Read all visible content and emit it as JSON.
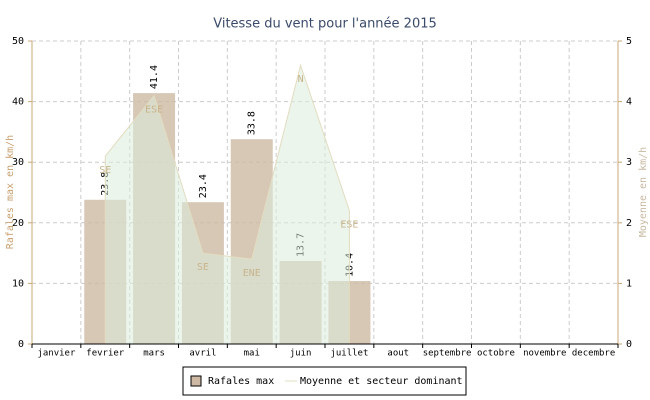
{
  "chart_data": {
    "type": "bar",
    "title": "Vitesse du vent pour l'année 2015",
    "y_label": "Rafales max en km/h",
    "y2_label": "Moyenne en km/h",
    "categories": [
      "janvier",
      "fevrier",
      "mars",
      "avril",
      "mai",
      "juin",
      "juillet",
      "aout",
      "septembre",
      "octobre",
      "novembre",
      "decembre"
    ],
    "series": [
      {
        "name": "Rafales max",
        "type": "bar",
        "color": "#cdb9a3",
        "values": [
          null,
          23.8,
          41.4,
          23.4,
          33.8,
          13.7,
          10.4,
          null,
          null,
          null,
          null,
          null
        ]
      },
      {
        "name": "Moyenne et secteur dominant",
        "type": "area",
        "axis": "y2",
        "color": "#dcecdc",
        "values": [
          null,
          3.1,
          4.1,
          1.5,
          1.4,
          4.6,
          2.2,
          null,
          null,
          null,
          null,
          null
        ],
        "labels": [
          null,
          "SE",
          "ESE",
          "SE",
          "ENE",
          "N",
          "ESE",
          null,
          null,
          null,
          null,
          null
        ]
      }
    ],
    "ylim": [
      0,
      50
    ],
    "yticks": [
      0,
      10,
      20,
      30,
      40,
      50
    ],
    "y2lim": [
      0,
      5
    ],
    "y2ticks": [
      0,
      1,
      2,
      3,
      4,
      5
    ],
    "grid": true
  }
}
